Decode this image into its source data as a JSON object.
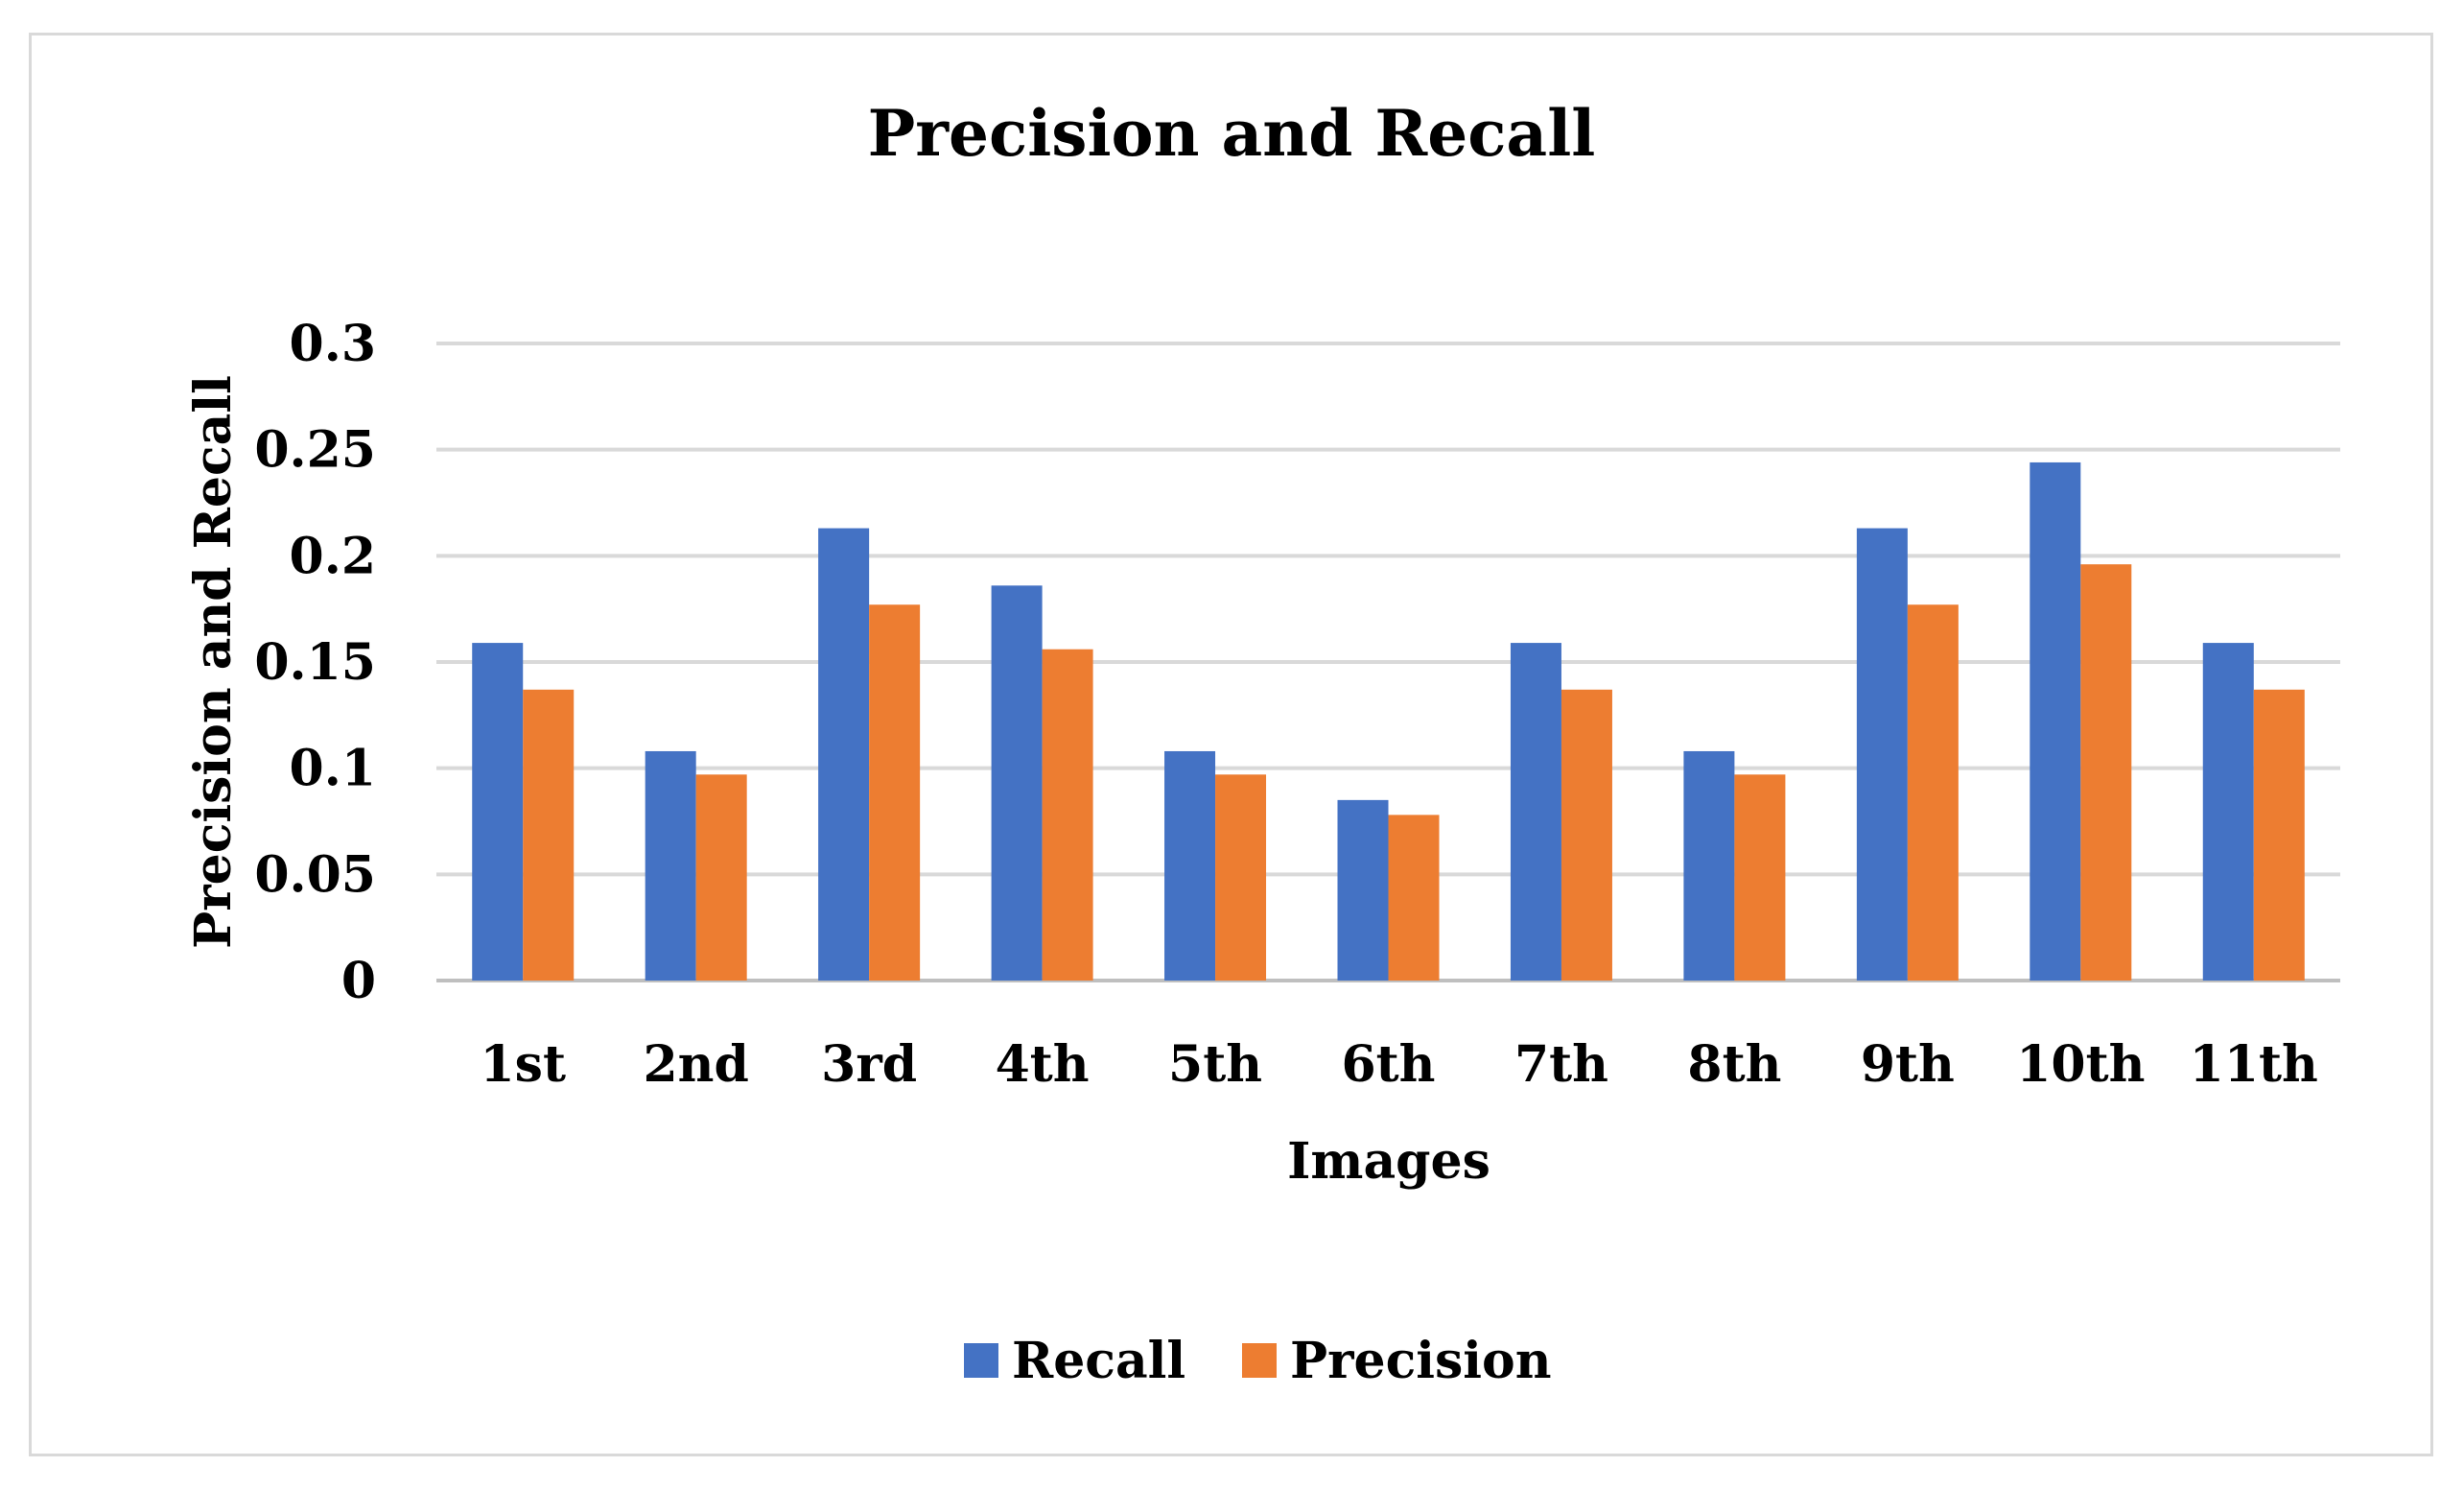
{
  "chart_data": {
    "type": "bar",
    "title": "Precision and Recall",
    "xlabel": "Images",
    "ylabel": "Precision and Recall",
    "categories": [
      "1st",
      "2nd",
      "3rd",
      "4th",
      "5th",
      "6th",
      "7th",
      "8th",
      "9th",
      "10th",
      "11th"
    ],
    "series": [
      {
        "name": "Recall",
        "color": "#4472c4",
        "values": [
          0.159,
          0.108,
          0.213,
          0.186,
          0.108,
          0.085,
          0.159,
          0.108,
          0.213,
          0.244,
          0.159
        ]
      },
      {
        "name": "Precision",
        "color": "#ed7d31",
        "values": [
          0.137,
          0.097,
          0.177,
          0.156,
          0.097,
          0.078,
          0.137,
          0.097,
          0.177,
          0.196,
          0.137
        ]
      }
    ],
    "yticks": [
      "0",
      "0.05",
      "0.1",
      "0.15",
      "0.2",
      "0.25",
      "0.3"
    ],
    "ylim": [
      0,
      0.3
    ],
    "grid": true,
    "legend_position": "bottom"
  }
}
